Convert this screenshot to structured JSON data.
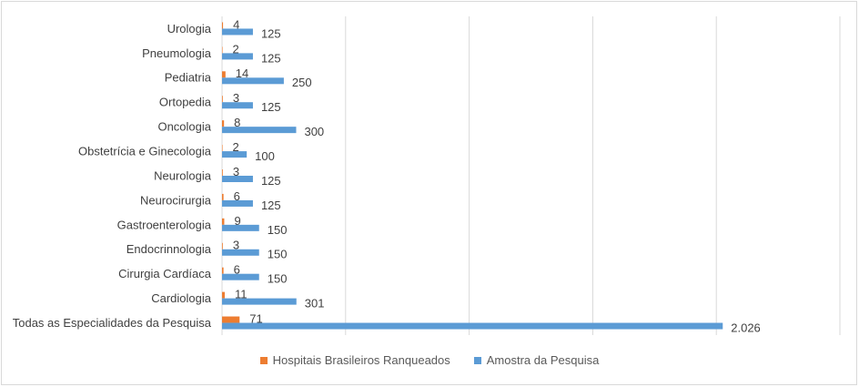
{
  "chart_data": {
    "type": "bar",
    "orientation": "horizontal",
    "categories": [
      "Urologia",
      "Pneumologia",
      "Pediatria",
      "Ortopedia",
      "Oncologia",
      "Obstetrícia e Ginecologia",
      "Neurologia",
      "Neurocirurgia",
      "Gastroenterologia",
      "Endocrinnologia",
      "Cirurgia Cardíaca",
      "Cardiologia",
      "Todas as Especialidades da Pesquisa"
    ],
    "series": [
      {
        "name": "Hospitais Brasileiros Ranqueados",
        "color": "#ed7d31",
        "values": [
          4,
          2,
          14,
          3,
          8,
          2,
          3,
          6,
          9,
          3,
          6,
          11,
          71
        ],
        "labels": [
          "4",
          "2",
          "14",
          "3",
          "8",
          "2",
          "3",
          "6",
          "9",
          "3",
          "6",
          "11",
          "71"
        ]
      },
      {
        "name": "Amostra da Pesquisa",
        "color": "#5b9bd5",
        "values": [
          125,
          125,
          250,
          125,
          300,
          100,
          125,
          125,
          150,
          150,
          150,
          301,
          2026
        ],
        "labels": [
          "125",
          "125",
          "250",
          "125",
          "300",
          "100",
          "125",
          "125",
          "150",
          "150",
          "150",
          "301",
          "2.026"
        ]
      }
    ],
    "xlim": [
      0,
      2500
    ],
    "grid": true,
    "legend_position": "bottom"
  },
  "legend": {
    "ranked_label": "Hospitais Brasileiros Ranqueados",
    "sample_label": "Amostra da Pesquisa"
  }
}
